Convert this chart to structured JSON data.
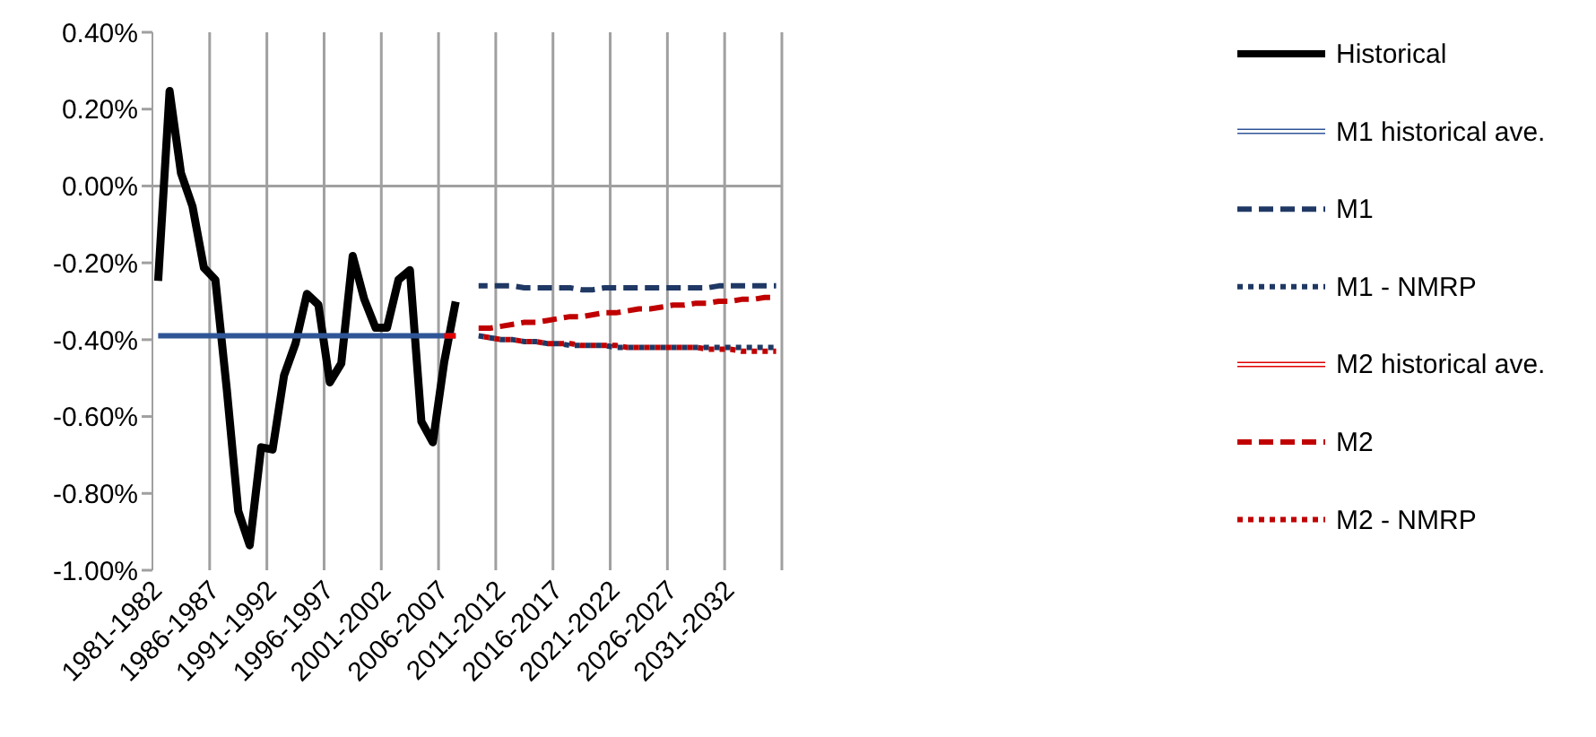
{
  "chart_data": {
    "type": "line",
    "categories": [
      "1981-1982",
      null,
      null,
      null,
      null,
      "1986-1987",
      null,
      null,
      null,
      null,
      "1991-1992",
      null,
      null,
      null,
      null,
      "1996-1997",
      null,
      null,
      null,
      null,
      "2001-2002",
      null,
      null,
      null,
      null,
      "2006-2007",
      null,
      null,
      null,
      null,
      "2011-2012",
      null,
      null,
      null,
      null,
      "2016-2017",
      null,
      null,
      null,
      null,
      "2021-2022",
      null,
      null,
      null,
      null,
      "2026-2027",
      null,
      null,
      null,
      null,
      "2031-2032",
      null,
      null,
      null,
      null
    ],
    "ylim": [
      -1.0,
      0.4
    ],
    "yticks": [
      {
        "value": 0.4,
        "label": "0.40%"
      },
      {
        "value": 0.2,
        "label": "0.20%"
      },
      {
        "value": 0,
        "label": "0.00%"
      },
      {
        "value": -0.2,
        "label": "-0.20%"
      },
      {
        "value": -0.4,
        "label": "-0.40%"
      },
      {
        "value": -0.6,
        "label": "-0.60%"
      },
      {
        "value": -0.8,
        "label": "-0.80%"
      },
      {
        "value": -1.0,
        "label": "-1.00%"
      }
    ],
    "grid": "x",
    "legend": "right",
    "marker": "none",
    "ref_lines": [
      {
        "axis": "y",
        "value": 0,
        "color": "#a0a0a0"
      }
    ],
    "series": [
      {
        "name": "Historical",
        "color": "#000000",
        "line_style": "solid",
        "values": [
          -0.247,
          0.247,
          0.033,
          -0.053,
          -0.213,
          -0.244,
          -0.53,
          -0.846,
          -0.935,
          -0.68,
          -0.686,
          -0.493,
          -0.41,
          -0.281,
          -0.309,
          -0.511,
          -0.462,
          -0.182,
          -0.294,
          -0.369,
          -0.369,
          -0.244,
          -0.219,
          -0.613,
          -0.667,
          -0.457,
          -0.301,
          null,
          null,
          null,
          null,
          null,
          null,
          null,
          null,
          null,
          null,
          null,
          null,
          null,
          null,
          null,
          null,
          null,
          null,
          null,
          null,
          null,
          null,
          null,
          null,
          null,
          null,
          null,
          null
        ]
      },
      {
        "name": "M1 historical ave.",
        "color": "#2f5597",
        "line_style": "solid",
        "values": [
          -0.39,
          -0.39,
          -0.39,
          -0.39,
          -0.39,
          -0.39,
          -0.39,
          -0.39,
          -0.39,
          -0.39,
          -0.39,
          -0.39,
          -0.39,
          -0.39,
          -0.39,
          -0.39,
          -0.39,
          -0.39,
          -0.39,
          -0.39,
          -0.39,
          -0.39,
          -0.39,
          -0.39,
          -0.39,
          -0.39,
          -0.39,
          null,
          null,
          null,
          null,
          null,
          null,
          null,
          null,
          null,
          null,
          null,
          null,
          null,
          null,
          null,
          null,
          null,
          null,
          null,
          null,
          null,
          null,
          null,
          null,
          null,
          null,
          null,
          null
        ]
      },
      {
        "name": "M1",
        "color": "#1f3864",
        "line_style": "dashed",
        "values": [
          null,
          null,
          null,
          null,
          null,
          null,
          null,
          null,
          null,
          null,
          null,
          null,
          null,
          null,
          null,
          null,
          null,
          null,
          null,
          null,
          null,
          null,
          null,
          null,
          null,
          null,
          null,
          null,
          -0.26,
          -0.26,
          -0.26,
          -0.26,
          -0.265,
          -0.265,
          -0.265,
          -0.265,
          -0.265,
          -0.27,
          -0.27,
          -0.265,
          -0.265,
          -0.265,
          -0.265,
          -0.265,
          -0.265,
          -0.265,
          -0.265,
          -0.265,
          -0.265,
          -0.26,
          -0.26,
          -0.26,
          -0.26,
          -0.26,
          -0.26
        ]
      },
      {
        "name": "M1 - NMRP",
        "color": "#1f3864",
        "line_style": "dotted",
        "values": [
          null,
          null,
          null,
          null,
          null,
          null,
          null,
          null,
          null,
          null,
          null,
          null,
          null,
          null,
          null,
          null,
          null,
          null,
          null,
          null,
          null,
          null,
          null,
          null,
          null,
          null,
          null,
          null,
          -0.39,
          -0.395,
          -0.4,
          -0.4,
          -0.405,
          -0.405,
          -0.41,
          -0.41,
          -0.415,
          -0.415,
          -0.415,
          -0.415,
          -0.42,
          -0.42,
          -0.42,
          -0.42,
          -0.42,
          -0.42,
          -0.42,
          -0.42,
          -0.42,
          -0.42,
          -0.42,
          -0.42,
          -0.42,
          -0.42,
          -0.42
        ]
      },
      {
        "name": "M2 historical ave.",
        "color": "#e00000",
        "line_style": "solid",
        "values": [
          null,
          null,
          null,
          null,
          null,
          null,
          null,
          null,
          null,
          null,
          null,
          null,
          null,
          null,
          null,
          null,
          null,
          null,
          null,
          null,
          null,
          null,
          null,
          null,
          null,
          -0.39,
          -0.39,
          null,
          null,
          null,
          null,
          null,
          null,
          null,
          null,
          null,
          null,
          null,
          null,
          null,
          null,
          null,
          null,
          null,
          null,
          null,
          null,
          null,
          null,
          null,
          null,
          null,
          null,
          null,
          null
        ]
      },
      {
        "name": "M2",
        "color": "#c00000",
        "line_style": "dashed",
        "values": [
          null,
          null,
          null,
          null,
          null,
          null,
          null,
          null,
          null,
          null,
          null,
          null,
          null,
          null,
          null,
          null,
          null,
          null,
          null,
          null,
          null,
          null,
          null,
          null,
          null,
          null,
          null,
          null,
          -0.37,
          -0.37,
          -0.365,
          -0.36,
          -0.355,
          -0.355,
          -0.35,
          -0.345,
          -0.34,
          -0.34,
          -0.335,
          -0.33,
          -0.33,
          -0.325,
          -0.32,
          -0.32,
          -0.315,
          -0.31,
          -0.31,
          -0.305,
          -0.305,
          -0.3,
          -0.3,
          -0.295,
          -0.295,
          -0.29,
          -0.29
        ]
      },
      {
        "name": "M2 - NMRP",
        "color": "#c00000",
        "line_style": "dotted",
        "values": [
          null,
          null,
          null,
          null,
          null,
          null,
          null,
          null,
          null,
          null,
          null,
          null,
          null,
          null,
          null,
          null,
          null,
          null,
          null,
          null,
          null,
          null,
          null,
          null,
          null,
          null,
          null,
          null,
          -0.39,
          -0.395,
          -0.4,
          -0.4,
          -0.405,
          -0.405,
          -0.41,
          -0.41,
          -0.41,
          -0.415,
          -0.415,
          -0.415,
          -0.415,
          -0.42,
          -0.42,
          -0.42,
          -0.42,
          -0.42,
          -0.42,
          -0.42,
          -0.425,
          -0.425,
          -0.425,
          -0.43,
          -0.43,
          -0.43,
          -0.43
        ]
      }
    ]
  }
}
